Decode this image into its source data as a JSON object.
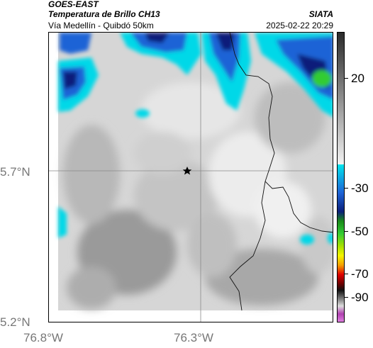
{
  "header": {
    "satellite": "GOES-EAST",
    "product": "Temperatura de Brillo CH13",
    "route": "Vía Medellín - Quibdó 50km",
    "org": "SIATA",
    "datetime": "2025-02-22 20:29"
  },
  "map": {
    "lat_labels": [
      "5.7°N",
      "5.2°N"
    ],
    "lon_labels": [
      "76.8°W",
      "76.3°W"
    ],
    "marker": "star-marker"
  },
  "colorbar": {
    "tick_labels": [
      "20",
      "-30",
      "-50",
      "-70",
      "-90"
    ],
    "colors": {
      "gray_dark": "#2b2b2b",
      "gray_light": "#f2f2f2",
      "cyan": "#00e5ee",
      "blue": "#1e63d6",
      "navy": "#0b1f7a",
      "green": "#33cc33",
      "yellow": "#f5f500",
      "red": "#e00000",
      "magenta": "#b040b0"
    }
  }
}
